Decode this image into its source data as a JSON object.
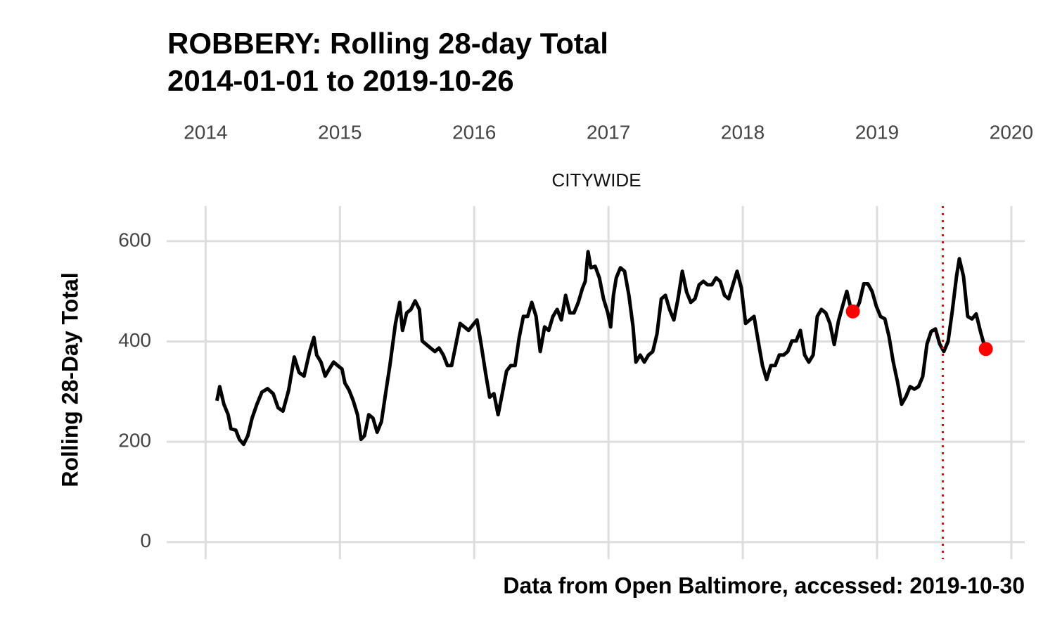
{
  "chart_data": {
    "type": "line",
    "title": "ROBBERY: Rolling 28-day Total",
    "subtitle": "2014-01-01 to 2019-10-26",
    "facet_label": "CITYWIDE",
    "y_label": "Rolling 28-Day Total",
    "caption": "Data from Open Baltimore, accessed: 2019-10-30",
    "xlim": [
      2013.71,
      2020.1
    ],
    "xticks": [
      2014,
      2015,
      2016,
      2017,
      2018,
      2019,
      2020
    ],
    "ylim": [
      -27,
      670
    ],
    "yticks": [
      0,
      200,
      400,
      600
    ],
    "grid": true,
    "color": "#000000",
    "x": [
      2014.084,
      2014.105,
      2014.136,
      2014.168,
      2014.188,
      2014.225,
      2014.251,
      2014.283,
      2014.314,
      2014.346,
      2014.382,
      2014.419,
      2014.461,
      2014.503,
      2014.539,
      2014.576,
      2014.618,
      2014.66,
      2014.696,
      2014.733,
      2014.775,
      2014.806,
      2014.827,
      2014.859,
      2014.89,
      2014.921,
      2014.953,
      2014.984,
      2015.016,
      2015.037,
      2015.068,
      2015.099,
      2015.131,
      2015.157,
      2015.183,
      2015.215,
      2015.246,
      2015.277,
      2015.309,
      2015.34,
      2015.372,
      2015.393,
      2015.414,
      2015.445,
      2015.466,
      2015.497,
      2015.529,
      2015.56,
      2015.592,
      2015.613,
      2015.644,
      2015.675,
      2015.707,
      2015.738,
      2015.77,
      2015.801,
      2015.832,
      2015.864,
      2015.895,
      2015.927,
      2015.958,
      2015.99,
      2016.021,
      2016.052,
      2016.084,
      2016.115,
      2016.147,
      2016.178,
      2016.209,
      2016.241,
      2016.272,
      2016.304,
      2016.335,
      2016.366,
      2016.398,
      2016.429,
      2016.461,
      2016.492,
      2016.524,
      2016.555,
      2016.586,
      2016.618,
      2016.649,
      2016.681,
      2016.712,
      2016.743,
      2016.775,
      2016.806,
      2016.827,
      2016.848,
      2016.869,
      2016.901,
      2016.932,
      2016.963,
      2016.995,
      2017.016,
      2017.037,
      2017.058,
      2017.089,
      2017.12,
      2017.152,
      2017.183,
      2017.204,
      2017.236,
      2017.267,
      2017.298,
      2017.33,
      2017.361,
      2017.393,
      2017.424,
      2017.455,
      2017.487,
      2017.518,
      2017.55,
      2017.581,
      2017.613,
      2017.644,
      2017.675,
      2017.707,
      2017.738,
      2017.77,
      2017.801,
      2017.832,
      2017.864,
      2017.895,
      2017.927,
      2017.958,
      2017.99,
      2018.021,
      2018.052,
      2018.084,
      2018.115,
      2018.147,
      2018.178,
      2018.209,
      2018.241,
      2018.272,
      2018.304,
      2018.335,
      2018.366,
      2018.398,
      2018.429,
      2018.461,
      2018.492,
      2018.524,
      2018.555,
      2018.586,
      2018.618,
      2018.649,
      2018.681,
      2018.712,
      2018.743,
      2018.775,
      2018.806,
      2018.838,
      2018.869,
      2018.901,
      2018.932,
      2018.963,
      2018.995,
      2019.026,
      2019.058,
      2019.089,
      2019.12,
      2019.152,
      2019.183,
      2019.215,
      2019.246,
      2019.277,
      2019.309,
      2019.34,
      2019.372,
      2019.403,
      2019.435,
      2019.466,
      2019.497,
      2019.529,
      2019.56,
      2019.592,
      2019.613,
      2019.644,
      2019.675,
      2019.707,
      2019.738,
      2019.77,
      2019.801
    ],
    "values": [
      282,
      310,
      275,
      254,
      226,
      223,
      205,
      195,
      212,
      247,
      275,
      299,
      306,
      296,
      268,
      261,
      303,
      369,
      338,
      331,
      380,
      408,
      373,
      359,
      331,
      345,
      359,
      352,
      345,
      317,
      303,
      282,
      254,
      205,
      212,
      254,
      247,
      219,
      240,
      296,
      352,
      394,
      436,
      478,
      422,
      457,
      464,
      481,
      464,
      401,
      394,
      387,
      380,
      387,
      373,
      352,
      352,
      394,
      436,
      429,
      422,
      433,
      443,
      394,
      338,
      289,
      296,
      254,
      296,
      341,
      352,
      352,
      408,
      450,
      450,
      478,
      450,
      380,
      429,
      422,
      450,
      464,
      443,
      492,
      457,
      457,
      478,
      506,
      520,
      579,
      547,
      550,
      527,
      485,
      457,
      429,
      492,
      527,
      547,
      540,
      492,
      429,
      359,
      373,
      359,
      373,
      380,
      415,
      485,
      492,
      464,
      443,
      485,
      540,
      499,
      478,
      485,
      513,
      520,
      513,
      513,
      527,
      520,
      492,
      485,
      513,
      540,
      506,
      436,
      443,
      450,
      401,
      352,
      324,
      352,
      352,
      373,
      373,
      380,
      401,
      401,
      422,
      373,
      359,
      373,
      450,
      464,
      457,
      436,
      394,
      440,
      470,
      500,
      465,
      460,
      478,
      515,
      515,
      500,
      470,
      450,
      445,
      410,
      360,
      320,
      275,
      290,
      310,
      305,
      310,
      330,
      395,
      420,
      425,
      395,
      380,
      400,
      460,
      530,
      565,
      530,
      450,
      445,
      455,
      420,
      390
    ],
    "highlight": {
      "x": [
        2018.82,
        2019.81
      ],
      "values": [
        460,
        385
      ],
      "color": "#ff0000"
    },
    "reference_line": {
      "x": 2019.49,
      "color": "#ff0000",
      "style": "dotted"
    }
  }
}
